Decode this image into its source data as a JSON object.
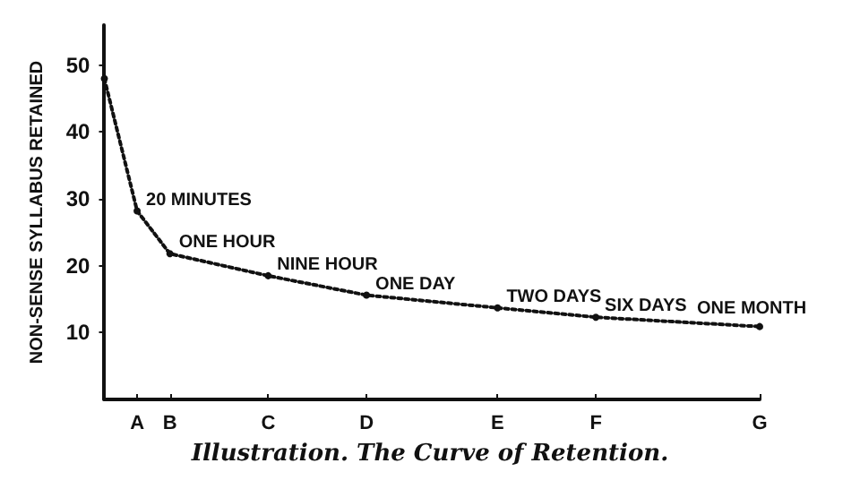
{
  "chart_data": {
    "type": "line",
    "title": "Illustration. The Curve of Retention.",
    "ylabel": "NON-SENSE SYLLABUS RETAINED",
    "categories": [
      null,
      "A",
      "B",
      null,
      null,
      "C",
      null,
      null,
      "D",
      null,
      null,
      null,
      "E",
      null,
      null,
      "F",
      null,
      null,
      null,
      null,
      "G"
    ],
    "series": [
      {
        "color": "#111111",
        "values": [
          48,
          28.2,
          21.8,
          null,
          null,
          18.5,
          null,
          null,
          15.6,
          null,
          null,
          null,
          13.7,
          null,
          null,
          12.3,
          null,
          null,
          null,
          null,
          10.9
        ]
      }
    ],
    "ylim": [
      0,
      56
    ],
    "yticks": [
      10,
      20,
      30,
      40,
      50
    ],
    "annotations": [
      {
        "text": "20 MINUTES",
        "x": "A",
        "y": 28.2
      },
      {
        "text": "ONE HOUR",
        "x": "B",
        "y": 21.8
      },
      {
        "text": "NINE HOUR",
        "x": "C",
        "y": 18.5
      },
      {
        "text": "ONE DAY",
        "x": "D",
        "y": 15.6
      },
      {
        "text": "TWO DAYS",
        "x": "E",
        "y": 13.7
      },
      {
        "text": "SIX DAYS",
        "x": "F",
        "y": 12.3
      },
      {
        "text": "ONE MONTH",
        "x": "G",
        "y": 10.9
      }
    ],
    "grid": false,
    "marker": "circle",
    "line_style": "dotted"
  }
}
